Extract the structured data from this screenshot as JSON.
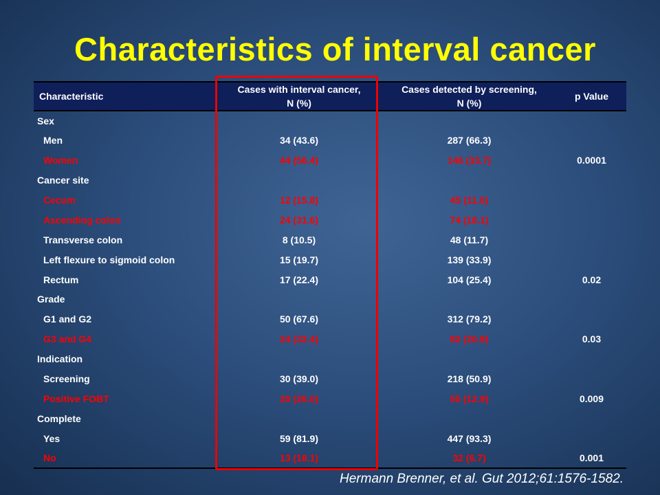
{
  "title": "Characteristics of interval cancer",
  "table": {
    "headers": {
      "characteristic": "Characteristic",
      "interval_line1": "Cases with interval cancer,",
      "interval_line2": "N (%)",
      "screening_line1": "Cases detected by screening,",
      "screening_line2": "N (%)",
      "p_value": "p Value"
    },
    "rows": [
      {
        "label": "Sex",
        "interval": "",
        "screening": "",
        "p": "",
        "indent": false,
        "red": false
      },
      {
        "label": "Men",
        "interval": "34 (43.6)",
        "screening": "287 (66.3)",
        "p": "",
        "indent": true,
        "red": false
      },
      {
        "label": "Women",
        "interval": "44 (56.4)",
        "screening": "146 (33.7)",
        "p": "0.0001",
        "indent": true,
        "red": true
      },
      {
        "label": "Cancer site",
        "interval": "",
        "screening": "",
        "p": "",
        "indent": false,
        "red": false
      },
      {
        "label": "Cecum",
        "interval": "12 (15.8)",
        "screening": "45 (11.0)",
        "p": "",
        "indent": true,
        "red": true
      },
      {
        "label": "Ascending colon",
        "interval": "24 (31.6)",
        "screening": "74 (18.1)",
        "p": "",
        "indent": true,
        "red": true
      },
      {
        "label": "Transverse colon",
        "interval": "8 (10.5)",
        "screening": "48 (11.7)",
        "p": "",
        "indent": true,
        "red": false
      },
      {
        "label": "Left flexure to sigmoid colon",
        "interval": "15 (19.7)",
        "screening": "139 (33.9)",
        "p": "",
        "indent": true,
        "red": false
      },
      {
        "label": "Rectum",
        "interval": "17 (22.4)",
        "screening": "104 (25.4)",
        "p": "0.02",
        "indent": true,
        "red": false
      },
      {
        "label": "Grade",
        "interval": "",
        "screening": "",
        "p": "",
        "indent": false,
        "red": false
      },
      {
        "label": "G1 and G2",
        "interval": "50 (67.6)",
        "screening": "312 (79.2)",
        "p": "",
        "indent": true,
        "red": false
      },
      {
        "label": "G3 and G4",
        "interval": "24 (32.4)",
        "screening": "82 (20.8)",
        "p": "0.03",
        "indent": true,
        "red": true
      },
      {
        "label": "Indication",
        "interval": "",
        "screening": "",
        "p": "",
        "indent": false,
        "red": false
      },
      {
        "label": "Screening",
        "interval": "30 (39.0)",
        "screening": "218 (50.9)",
        "p": "",
        "indent": true,
        "red": false
      },
      {
        "label": "Positive FOBT",
        "interval": "20 (26.0)",
        "screening": "55 (12.9)",
        "p": "0.009",
        "indent": true,
        "red": true
      },
      {
        "label": "Complete",
        "interval": "",
        "screening": "",
        "p": "",
        "indent": false,
        "red": false
      },
      {
        "label": "Yes",
        "interval": "59 (81.9)",
        "screening": "447 (93.3)",
        "p": "",
        "indent": true,
        "red": false
      },
      {
        "label": "No",
        "interval": "13 (18.1)",
        "screening": "32 (6.7)",
        "p": "0.001",
        "indent": true,
        "red": true
      }
    ]
  },
  "citation": "Hermann Brenner, et al. Gut 2012;61:1576-1582.",
  "colors": {
    "title": "#ffff00",
    "header_background": "#0f1f5a",
    "highlight_text": "#ff0000",
    "highlight_box": "#ee0000"
  }
}
